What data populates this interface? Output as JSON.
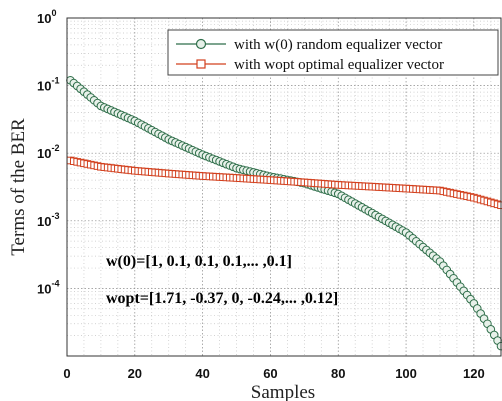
{
  "chart_data": {
    "type": "scatter",
    "title": "",
    "xlabel": "Samples",
    "ylabel": "Terms of the BER",
    "xlim": [
      0,
      128
    ],
    "ylim": [
      1e-05,
      1
    ],
    "yscale": "log",
    "grid": true,
    "legend_position": "top-right",
    "x_ticks": [
      "0",
      "20",
      "40",
      "60",
      "80",
      "100",
      "120"
    ],
    "y_ticks": [
      {
        "base": "10",
        "exp": "0"
      },
      {
        "base": "10",
        "exp": "-1"
      },
      {
        "base": "10",
        "exp": "-2"
      },
      {
        "base": "10",
        "exp": "-3"
      },
      {
        "base": "10",
        "exp": "-4"
      }
    ],
    "series": [
      {
        "name": "with w(0) random equalizer vector",
        "color": "#2f6e4a",
        "marker": "circle",
        "x": [
          1,
          10,
          20,
          30,
          40,
          50,
          60,
          70,
          80,
          90,
          100,
          110,
          120,
          124,
          128
        ],
        "y": [
          0.12,
          0.05,
          0.03,
          0.016,
          0.0095,
          0.006,
          0.0045,
          0.0036,
          0.0025,
          0.0013,
          0.00067,
          0.00025,
          6e-05,
          3e-05,
          1.4e-05
        ]
      },
      {
        "name": "with wopt optimal equalizer vector",
        "color": "#d2401e",
        "marker": "square",
        "x": [
          1,
          10,
          20,
          30,
          40,
          50,
          60,
          70,
          80,
          90,
          100,
          110,
          120,
          128
        ],
        "y": [
          0.0078,
          0.0063,
          0.0055,
          0.005,
          0.0046,
          0.0043,
          0.004,
          0.0037,
          0.0034,
          0.0032,
          0.003,
          0.0028,
          0.0022,
          0.0017
        ]
      }
    ],
    "annotations": [
      {
        "text": "w(0)=[1, 0.1, 0.1, 0.1,... ,0.1]",
        "color": "#d2401e"
      },
      {
        "text": "wopt=[1.71, -0.37, 0, -0.24,... ,0.12]",
        "color": "#2f5c40"
      }
    ]
  }
}
